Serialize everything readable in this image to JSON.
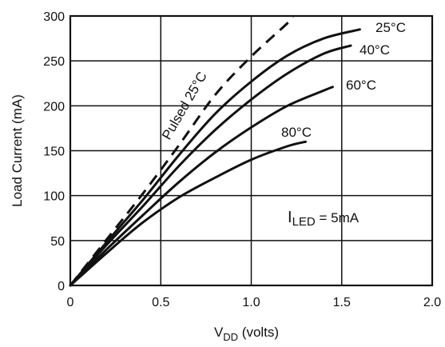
{
  "chart_data": {
    "type": "line",
    "xlabel": {
      "main": "V",
      "sub": "DD",
      "suffix": " (volts)"
    },
    "ylabel": "Load Current (mA)",
    "xlim": [
      0,
      2.0
    ],
    "ylim": [
      0,
      300
    ],
    "x_ticks": [
      0,
      0.5,
      1.0,
      1.5,
      2.0
    ],
    "x_tick_labels": [
      "0",
      "0.5",
      "1.0",
      "1.5",
      "2.0"
    ],
    "y_ticks": [
      0,
      50,
      100,
      150,
      200,
      250,
      300
    ],
    "y_tick_labels": [
      "0",
      "50",
      "100",
      "150",
      "200",
      "250",
      "300"
    ],
    "grid": true,
    "series": [
      {
        "name": "Pulsed 25°C",
        "dashed": true,
        "points": [
          [
            0,
            0
          ],
          [
            0.2,
            51
          ],
          [
            0.4,
            102
          ],
          [
            0.6,
            156
          ],
          [
            0.8,
            212
          ],
          [
            1.0,
            255
          ],
          [
            1.2,
            292
          ],
          [
            1.23,
            300
          ]
        ]
      },
      {
        "name": "25°C",
        "dashed": false,
        "points": [
          [
            0,
            0
          ],
          [
            0.2,
            48
          ],
          [
            0.4,
            95
          ],
          [
            0.6,
            145
          ],
          [
            0.8,
            191
          ],
          [
            1.0,
            227
          ],
          [
            1.2,
            256
          ],
          [
            1.4,
            275
          ],
          [
            1.6,
            285
          ]
        ]
      },
      {
        "name": "40°C",
        "dashed": false,
        "points": [
          [
            0,
            0
          ],
          [
            0.2,
            45
          ],
          [
            0.4,
            88
          ],
          [
            0.6,
            133
          ],
          [
            0.8,
            173
          ],
          [
            1.0,
            207
          ],
          [
            1.2,
            236
          ],
          [
            1.4,
            258
          ],
          [
            1.55,
            267
          ]
        ]
      },
      {
        "name": "60°C",
        "dashed": false,
        "points": [
          [
            0,
            0
          ],
          [
            0.2,
            40
          ],
          [
            0.4,
            78
          ],
          [
            0.6,
            115
          ],
          [
            0.8,
            148
          ],
          [
            1.0,
            176
          ],
          [
            1.2,
            200
          ],
          [
            1.4,
            217
          ],
          [
            1.45,
            221
          ]
        ]
      },
      {
        "name": "80°C",
        "dashed": false,
        "points": [
          [
            0,
            0
          ],
          [
            0.2,
            36
          ],
          [
            0.4,
            70
          ],
          [
            0.6,
            98
          ],
          [
            0.8,
            120
          ],
          [
            1.0,
            140
          ],
          [
            1.2,
            155
          ],
          [
            1.3,
            160
          ]
        ]
      }
    ],
    "annotation": {
      "main": "I",
      "sub": "LED",
      "suffix": " = 5mA"
    }
  }
}
